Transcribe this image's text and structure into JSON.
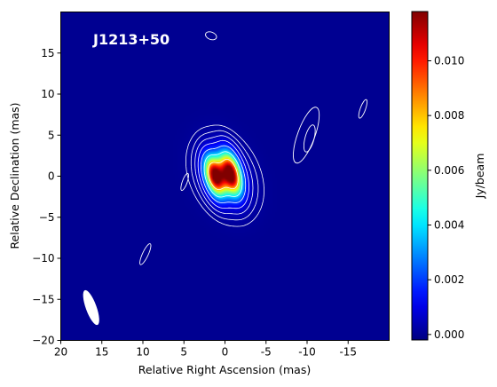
{
  "chart_data": {
    "type": "heatmap",
    "title": "",
    "annotation": "J1213+50",
    "xlabel": "Relative Right Ascension (mas)",
    "ylabel": "Relative Declination (mas)",
    "xlim": [
      20,
      -20
    ],
    "ylim": [
      -20,
      20
    ],
    "x_ticks": [
      20,
      15,
      10,
      5,
      0,
      -5,
      -10,
      -15
    ],
    "x_tick_labels": [
      "20",
      "15",
      "10",
      "5",
      "0",
      "-5",
      "-10",
      "-15"
    ],
    "y_ticks": [
      15,
      10,
      5,
      0,
      -5,
      -10,
      -15,
      -20
    ],
    "y_tick_labels": [
      "15",
      "10",
      "5",
      "0",
      "−5",
      "−10",
      "−15",
      "−20"
    ],
    "colormap": "jet",
    "background_color": "#00008f",
    "contour_color": "#ffffff",
    "colorbar": {
      "label": "Jy/beam",
      "range": [
        -0.0002,
        0.0118
      ],
      "ticks": [
        0.0,
        0.002,
        0.004,
        0.006,
        0.008,
        0.01
      ],
      "tick_labels": [
        "0.000",
        "0.002",
        "0.004",
        "0.006",
        "0.008",
        "0.010"
      ]
    },
    "components": [
      {
        "x": 1.2,
        "y": 0.0,
        "peak": 0.0115,
        "sigma_major": 1.6,
        "sigma_minor": 0.75,
        "pa_deg": -15
      },
      {
        "x": -0.7,
        "y": 0.3,
        "peak": 0.0118,
        "sigma_major": 1.7,
        "sigma_minor": 0.75,
        "pa_deg": -15
      },
      {
        "x": 0.0,
        "y": 0.0,
        "peak": 0.0016,
        "sigma_major": 2.8,
        "sigma_minor": 1.9,
        "pa_deg": -25
      }
    ],
    "contour_levels": [
      0.00012,
      0.00025,
      0.0005,
      0.001,
      0.002,
      0.004,
      0.008
    ],
    "isolated_contours": [
      {
        "x": 1.7,
        "y": 17.1,
        "rx": 0.7,
        "ry": 0.45,
        "rot_deg": 20
      },
      {
        "x": 4.9,
        "y": -0.7,
        "rx": 1.1,
        "ry": 0.3,
        "rot_deg": -70
      },
      {
        "x": -9.9,
        "y": 5.0,
        "rx": 3.6,
        "ry": 1.05,
        "rot_deg": -70
      },
      {
        "x": -10.3,
        "y": 4.6,
        "rx": 1.7,
        "ry": 0.55,
        "rot_deg": -75
      },
      {
        "x": -16.8,
        "y": 8.2,
        "rx": 1.2,
        "ry": 0.32,
        "rot_deg": -70
      },
      {
        "x": 9.7,
        "y": -9.5,
        "rx": 1.4,
        "ry": 0.35,
        "rot_deg": -65
      }
    ],
    "beam": {
      "x": 16.3,
      "y": -16.0,
      "major": 4.5,
      "minor": 1.3,
      "pa_deg": -20
    },
    "grid": false
  }
}
